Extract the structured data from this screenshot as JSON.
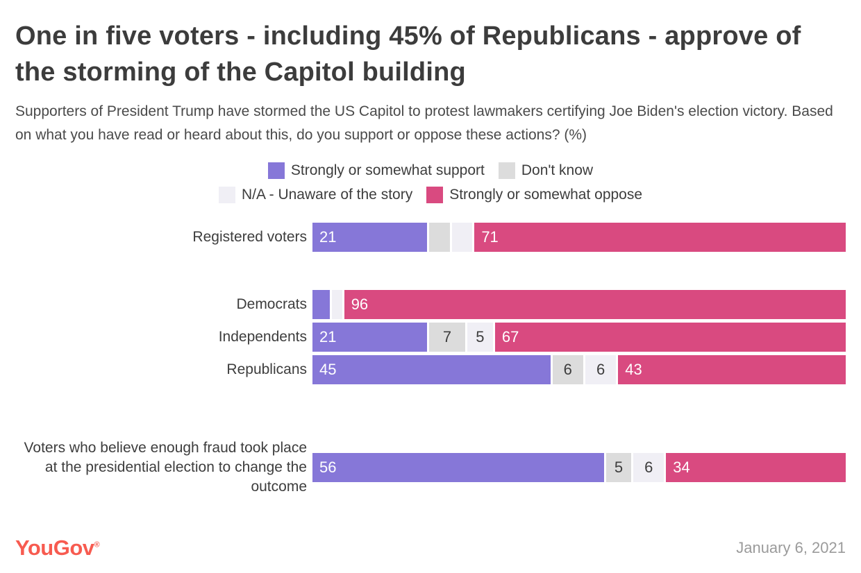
{
  "title": "One in five voters - including 45% of Republicans - approve of the storming of the Capitol building",
  "subtitle": "Supporters of President Trump have stormed the US Capitol to protest lawmakers certifying Joe Biden's election victory. Based on what you have read or heard about this, do you support or oppose these actions? (%)",
  "footer": {
    "logo_text": "YouGov",
    "logo_registered": "®",
    "logo_color": "#F75B50",
    "date": "January 6, 2021",
    "date_color": "#9B9B9B"
  },
  "chart_data": {
    "type": "bar",
    "orientation": "horizontal",
    "stacked": true,
    "unit": "percent",
    "xlim": [
      0,
      100
    ],
    "grid": false,
    "legend_position": "top-center",
    "label_min_value": 5,
    "series_meta": [
      {
        "name": "Strongly or somewhat support",
        "color": "#8677D8",
        "text_color": "#FFFFFF"
      },
      {
        "name": "Don't know",
        "color": "#DCDCDC",
        "text_color": "#3D3D3D"
      },
      {
        "name": "N/A - Unaware of the story",
        "color": "#F0EFF5",
        "text_color": "#3D3D3D"
      },
      {
        "name": "Strongly or somewhat oppose",
        "color": "#D94A80",
        "text_color": "#FFFFFF"
      }
    ],
    "legend_rows": [
      [
        0,
        1
      ],
      [
        2,
        3
      ]
    ],
    "categories": [
      "Registered voters",
      "Democrats",
      "Independents",
      "Republicans",
      "Voters who believe enough fraud took place at the presidential election to change the outcome"
    ],
    "series": [
      {
        "name": "Strongly or somewhat support",
        "values": [
          21,
          2,
          21,
          45,
          56
        ]
      },
      {
        "name": "Don't know",
        "values": [
          4,
          0,
          7,
          6,
          5
        ]
      },
      {
        "name": "N/A - Unaware of the story",
        "values": [
          4,
          2,
          5,
          6,
          6
        ]
      },
      {
        "name": "Strongly or somewhat oppose",
        "values": [
          71,
          96,
          67,
          43,
          34
        ]
      }
    ],
    "row_groups": [
      [
        0
      ],
      [
        1,
        2,
        3
      ],
      [
        4
      ]
    ]
  }
}
